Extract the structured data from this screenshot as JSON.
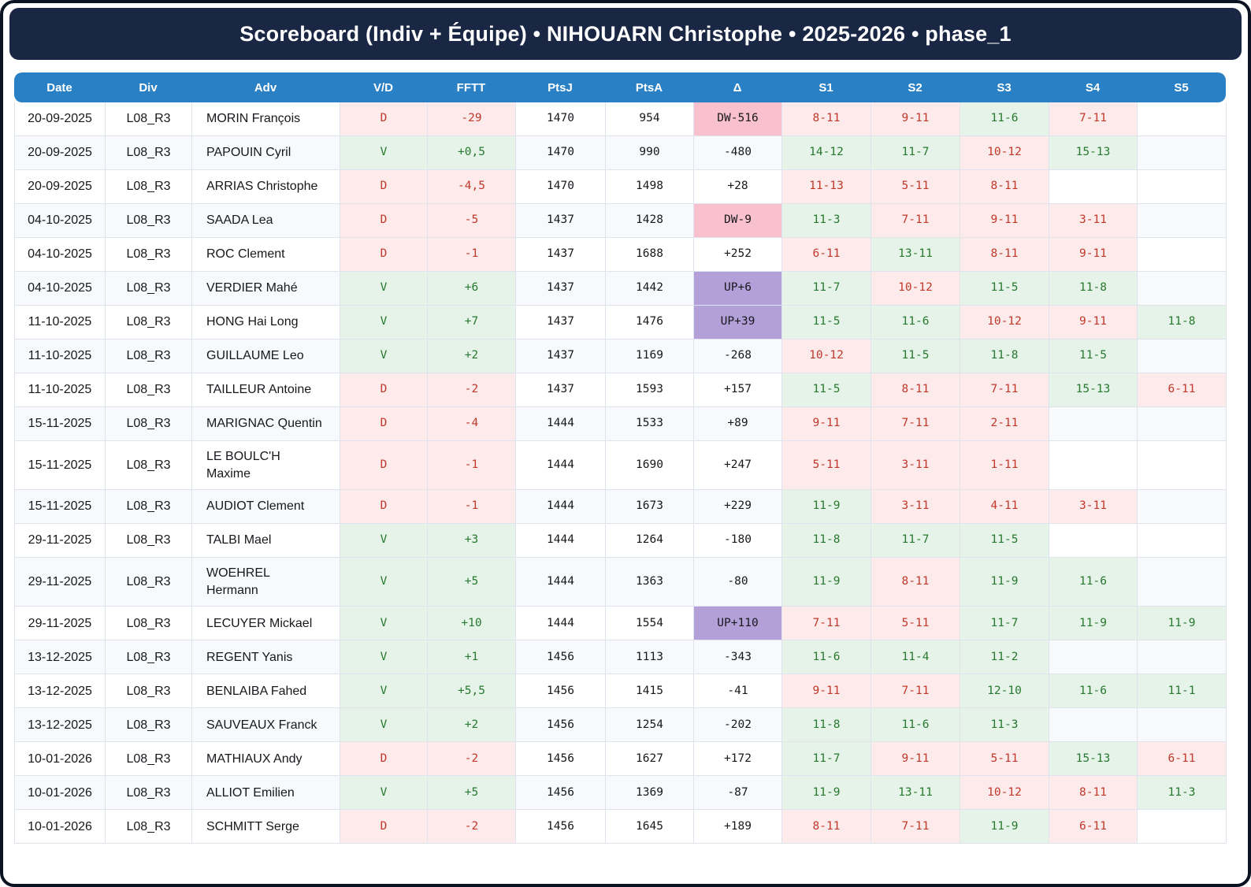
{
  "title": "Scoreboard (Indiv + Équipe) • NIHOUARN Christophe • 2025-2026 • phase_1",
  "columns": [
    {
      "key": "date",
      "label": "Date"
    },
    {
      "key": "div",
      "label": "Div"
    },
    {
      "key": "adv",
      "label": "Adv"
    },
    {
      "key": "vd",
      "label": "V/D"
    },
    {
      "key": "fftt",
      "label": "FFTT"
    },
    {
      "key": "ptsj",
      "label": "PtsJ"
    },
    {
      "key": "ptsa",
      "label": "PtsA"
    },
    {
      "key": "delta",
      "label": "Δ"
    },
    {
      "key": "s1",
      "label": "S1"
    },
    {
      "key": "s2",
      "label": "S2"
    },
    {
      "key": "s3",
      "label": "S3"
    },
    {
      "key": "s4",
      "label": "S4"
    },
    {
      "key": "s5",
      "label": "S5"
    }
  ],
  "colors": {
    "title_bar_bg": "#1a2744",
    "header_bg": "#2980c4",
    "header_text": "#ffffff",
    "grid_line": "#dfe4ec",
    "alt_row_bg": "#f7f9fc",
    "win_bg": "#e6f3e8",
    "win_text": "#27792f",
    "loss_bg": "#fdeaea",
    "loss_text": "#c0392b",
    "delta_down_bg": "#f9c0ce",
    "delta_up_bg": "#b3a0d9",
    "number_text": "#17181c"
  },
  "rows": [
    {
      "date": "20-09-2025",
      "div": "L08_R3",
      "adv": "MORIN François",
      "vd": "D",
      "fftt": "-29",
      "ptsj": "1470",
      "ptsa": "954",
      "delta": "DW-516",
      "delta_type": "down",
      "sets": [
        {
          "s": "8-11",
          "r": "l"
        },
        {
          "s": "9-11",
          "r": "l"
        },
        {
          "s": "11-6",
          "r": "w"
        },
        {
          "s": "7-11",
          "r": "l"
        },
        null
      ]
    },
    {
      "date": "20-09-2025",
      "div": "L08_R3",
      "adv": "PAPOUIN Cyril",
      "vd": "V",
      "fftt": "+0,5",
      "ptsj": "1470",
      "ptsa": "990",
      "delta": "-480",
      "delta_type": "plain",
      "sets": [
        {
          "s": "14-12",
          "r": "w"
        },
        {
          "s": "11-7",
          "r": "w"
        },
        {
          "s": "10-12",
          "r": "l"
        },
        {
          "s": "15-13",
          "r": "w"
        },
        null
      ]
    },
    {
      "date": "20-09-2025",
      "div": "L08_R3",
      "adv": "ARRIAS Christophe",
      "vd": "D",
      "fftt": "-4,5",
      "ptsj": "1470",
      "ptsa": "1498",
      "delta": "+28",
      "delta_type": "plain",
      "sets": [
        {
          "s": "11-13",
          "r": "l"
        },
        {
          "s": "5-11",
          "r": "l"
        },
        {
          "s": "8-11",
          "r": "l"
        },
        null,
        null
      ]
    },
    {
      "date": "04-10-2025",
      "div": "L08_R3",
      "adv": "SAADA Lea",
      "vd": "D",
      "fftt": "-5",
      "ptsj": "1437",
      "ptsa": "1428",
      "delta": "DW-9",
      "delta_type": "down",
      "sets": [
        {
          "s": "11-3",
          "r": "w"
        },
        {
          "s": "7-11",
          "r": "l"
        },
        {
          "s": "9-11",
          "r": "l"
        },
        {
          "s": "3-11",
          "r": "l"
        },
        null
      ]
    },
    {
      "date": "04-10-2025",
      "div": "L08_R3",
      "adv": "ROC Clement",
      "vd": "D",
      "fftt": "-1",
      "ptsj": "1437",
      "ptsa": "1688",
      "delta": "+252",
      "delta_type": "plain",
      "sets": [
        {
          "s": "6-11",
          "r": "l"
        },
        {
          "s": "13-11",
          "r": "w"
        },
        {
          "s": "8-11",
          "r": "l"
        },
        {
          "s": "9-11",
          "r": "l"
        },
        null
      ]
    },
    {
      "date": "04-10-2025",
      "div": "L08_R3",
      "adv": "VERDIER Mahé",
      "vd": "V",
      "fftt": "+6",
      "ptsj": "1437",
      "ptsa": "1442",
      "delta": "UP+6",
      "delta_type": "up",
      "sets": [
        {
          "s": "11-7",
          "r": "w"
        },
        {
          "s": "10-12",
          "r": "l"
        },
        {
          "s": "11-5",
          "r": "w"
        },
        {
          "s": "11-8",
          "r": "w"
        },
        null
      ]
    },
    {
      "date": "11-10-2025",
      "div": "L08_R3",
      "adv": "HONG Hai Long",
      "vd": "V",
      "fftt": "+7",
      "ptsj": "1437",
      "ptsa": "1476",
      "delta": "UP+39",
      "delta_type": "up",
      "sets": [
        {
          "s": "11-5",
          "r": "w"
        },
        {
          "s": "11-6",
          "r": "w"
        },
        {
          "s": "10-12",
          "r": "l"
        },
        {
          "s": "9-11",
          "r": "l"
        },
        {
          "s": "11-8",
          "r": "w"
        }
      ]
    },
    {
      "date": "11-10-2025",
      "div": "L08_R3",
      "adv": "GUILLAUME Leo",
      "vd": "V",
      "fftt": "+2",
      "ptsj": "1437",
      "ptsa": "1169",
      "delta": "-268",
      "delta_type": "plain",
      "sets": [
        {
          "s": "10-12",
          "r": "l"
        },
        {
          "s": "11-5",
          "r": "w"
        },
        {
          "s": "11-8",
          "r": "w"
        },
        {
          "s": "11-5",
          "r": "w"
        },
        null
      ]
    },
    {
      "date": "11-10-2025",
      "div": "L08_R3",
      "adv": "TAILLEUR Antoine",
      "vd": "D",
      "fftt": "-2",
      "ptsj": "1437",
      "ptsa": "1593",
      "delta": "+157",
      "delta_type": "plain",
      "sets": [
        {
          "s": "11-5",
          "r": "w"
        },
        {
          "s": "8-11",
          "r": "l"
        },
        {
          "s": "7-11",
          "r": "l"
        },
        {
          "s": "15-13",
          "r": "w"
        },
        {
          "s": "6-11",
          "r": "l"
        }
      ]
    },
    {
      "date": "15-11-2025",
      "div": "L08_R3",
      "adv": "MARIGNAC Quentin",
      "vd": "D",
      "fftt": "-4",
      "ptsj": "1444",
      "ptsa": "1533",
      "delta": "+89",
      "delta_type": "plain",
      "sets": [
        {
          "s": "9-11",
          "r": "l"
        },
        {
          "s": "7-11",
          "r": "l"
        },
        {
          "s": "2-11",
          "r": "l"
        },
        null,
        null
      ]
    },
    {
      "date": "15-11-2025",
      "div": "L08_R3",
      "adv": "LE BOULC'H Maxime",
      "vd": "D",
      "fftt": "-1",
      "ptsj": "1444",
      "ptsa": "1690",
      "delta": "+247",
      "delta_type": "plain",
      "sets": [
        {
          "s": "5-11",
          "r": "l"
        },
        {
          "s": "3-11",
          "r": "l"
        },
        {
          "s": "1-11",
          "r": "l"
        },
        null,
        null
      ]
    },
    {
      "date": "15-11-2025",
      "div": "L08_R3",
      "adv": "AUDIOT Clement",
      "vd": "D",
      "fftt": "-1",
      "ptsj": "1444",
      "ptsa": "1673",
      "delta": "+229",
      "delta_type": "plain",
      "sets": [
        {
          "s": "11-9",
          "r": "w"
        },
        {
          "s": "3-11",
          "r": "l"
        },
        {
          "s": "4-11",
          "r": "l"
        },
        {
          "s": "3-11",
          "r": "l"
        },
        null
      ]
    },
    {
      "date": "29-11-2025",
      "div": "L08_R3",
      "adv": "TALBI Mael",
      "vd": "V",
      "fftt": "+3",
      "ptsj": "1444",
      "ptsa": "1264",
      "delta": "-180",
      "delta_type": "plain",
      "sets": [
        {
          "s": "11-8",
          "r": "w"
        },
        {
          "s": "11-7",
          "r": "w"
        },
        {
          "s": "11-5",
          "r": "w"
        },
        null,
        null
      ]
    },
    {
      "date": "29-11-2025",
      "div": "L08_R3",
      "adv": "WOEHREL Hermann",
      "vd": "V",
      "fftt": "+5",
      "ptsj": "1444",
      "ptsa": "1363",
      "delta": "-80",
      "delta_type": "plain",
      "sets": [
        {
          "s": "11-9",
          "r": "w"
        },
        {
          "s": "8-11",
          "r": "l"
        },
        {
          "s": "11-9",
          "r": "w"
        },
        {
          "s": "11-6",
          "r": "w"
        },
        null
      ]
    },
    {
      "date": "29-11-2025",
      "div": "L08_R3",
      "adv": "LECUYER Mickael",
      "vd": "V",
      "fftt": "+10",
      "ptsj": "1444",
      "ptsa": "1554",
      "delta": "UP+110",
      "delta_type": "up",
      "sets": [
        {
          "s": "7-11",
          "r": "l"
        },
        {
          "s": "5-11",
          "r": "l"
        },
        {
          "s": "11-7",
          "r": "w"
        },
        {
          "s": "11-9",
          "r": "w"
        },
        {
          "s": "11-9",
          "r": "w"
        }
      ]
    },
    {
      "date": "13-12-2025",
      "div": "L08_R3",
      "adv": "REGENT Yanis",
      "vd": "V",
      "fftt": "+1",
      "ptsj": "1456",
      "ptsa": "1113",
      "delta": "-343",
      "delta_type": "plain",
      "sets": [
        {
          "s": "11-6",
          "r": "w"
        },
        {
          "s": "11-4",
          "r": "w"
        },
        {
          "s": "11-2",
          "r": "w"
        },
        null,
        null
      ]
    },
    {
      "date": "13-12-2025",
      "div": "L08_R3",
      "adv": "BENLAIBA Fahed",
      "vd": "V",
      "fftt": "+5,5",
      "ptsj": "1456",
      "ptsa": "1415",
      "delta": "-41",
      "delta_type": "plain",
      "sets": [
        {
          "s": "9-11",
          "r": "l"
        },
        {
          "s": "7-11",
          "r": "l"
        },
        {
          "s": "12-10",
          "r": "w"
        },
        {
          "s": "11-6",
          "r": "w"
        },
        {
          "s": "11-1",
          "r": "w"
        }
      ]
    },
    {
      "date": "13-12-2025",
      "div": "L08_R3",
      "adv": "SAUVEAUX Franck",
      "vd": "V",
      "fftt": "+2",
      "ptsj": "1456",
      "ptsa": "1254",
      "delta": "-202",
      "delta_type": "plain",
      "sets": [
        {
          "s": "11-8",
          "r": "w"
        },
        {
          "s": "11-6",
          "r": "w"
        },
        {
          "s": "11-3",
          "r": "w"
        },
        null,
        null
      ]
    },
    {
      "date": "10-01-2026",
      "div": "L08_R3",
      "adv": "MATHIAUX Andy",
      "vd": "D",
      "fftt": "-2",
      "ptsj": "1456",
      "ptsa": "1627",
      "delta": "+172",
      "delta_type": "plain",
      "sets": [
        {
          "s": "11-7",
          "r": "w"
        },
        {
          "s": "9-11",
          "r": "l"
        },
        {
          "s": "5-11",
          "r": "l"
        },
        {
          "s": "15-13",
          "r": "w"
        },
        {
          "s": "6-11",
          "r": "l"
        }
      ]
    },
    {
      "date": "10-01-2026",
      "div": "L08_R3",
      "adv": "ALLIOT Emilien",
      "vd": "V",
      "fftt": "+5",
      "ptsj": "1456",
      "ptsa": "1369",
      "delta": "-87",
      "delta_type": "plain",
      "sets": [
        {
          "s": "11-9",
          "r": "w"
        },
        {
          "s": "13-11",
          "r": "w"
        },
        {
          "s": "10-12",
          "r": "l"
        },
        {
          "s": "8-11",
          "r": "l"
        },
        {
          "s": "11-3",
          "r": "w"
        }
      ]
    },
    {
      "date": "10-01-2026",
      "div": "L08_R3",
      "adv": "SCHMITT Serge",
      "vd": "D",
      "fftt": "-2",
      "ptsj": "1456",
      "ptsa": "1645",
      "delta": "+189",
      "delta_type": "plain",
      "sets": [
        {
          "s": "8-11",
          "r": "l"
        },
        {
          "s": "7-11",
          "r": "l"
        },
        {
          "s": "11-9",
          "r": "w"
        },
        {
          "s": "6-11",
          "r": "l"
        },
        null
      ]
    }
  ]
}
